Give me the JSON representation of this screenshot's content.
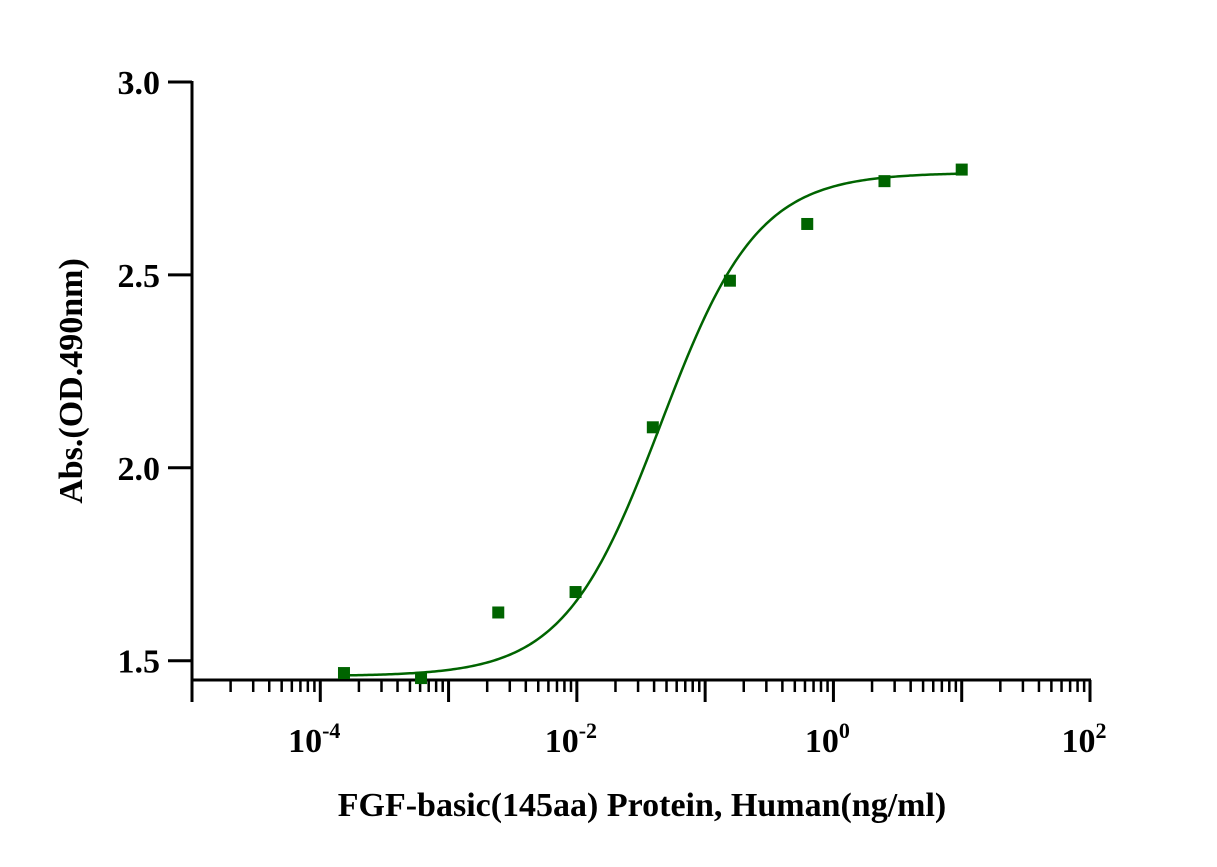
{
  "chart_data": {
    "type": "scatter",
    "title": "",
    "xlabel": "FGF-basic(145aa) Protein, Human(ng/ml)",
    "ylabel": "Abs.(OD.490nm)",
    "xscale": "log10",
    "xlim": [
      1e-05,
      100
    ],
    "ylim": [
      1.45,
      3.0
    ],
    "x_tick_labels": [
      {
        "base": "10",
        "exp": "-4"
      },
      {
        "base": "10",
        "exp": "-2"
      },
      {
        "base": "10",
        "exp": "0"
      },
      {
        "base": "10",
        "exp": "2"
      }
    ],
    "x_tick_values": [
      0.0001,
      0.01,
      1,
      100
    ],
    "y_ticks": [
      1.5,
      2.0,
      2.5,
      3.0
    ],
    "y_tick_labels": [
      "1.5",
      "2.0",
      "2.5",
      "3.0"
    ],
    "series": [
      {
        "name": "FGF-basic(145aa) Protein, Human",
        "marker": "square",
        "x": [
          0.000153,
          0.00061,
          0.00244,
          0.00977,
          0.0391,
          0.156,
          0.625,
          2.5,
          10
        ],
        "y": [
          1.468,
          1.455,
          1.625,
          1.678,
          2.105,
          2.485,
          2.632,
          2.743,
          2.773
        ]
      }
    ],
    "fit": {
      "type": "4PL",
      "bottom": 1.46,
      "top": 2.765,
      "ec50": 0.045,
      "hill": 1.15
    },
    "colors": {
      "series": "#006400",
      "axis": "#000000"
    }
  }
}
